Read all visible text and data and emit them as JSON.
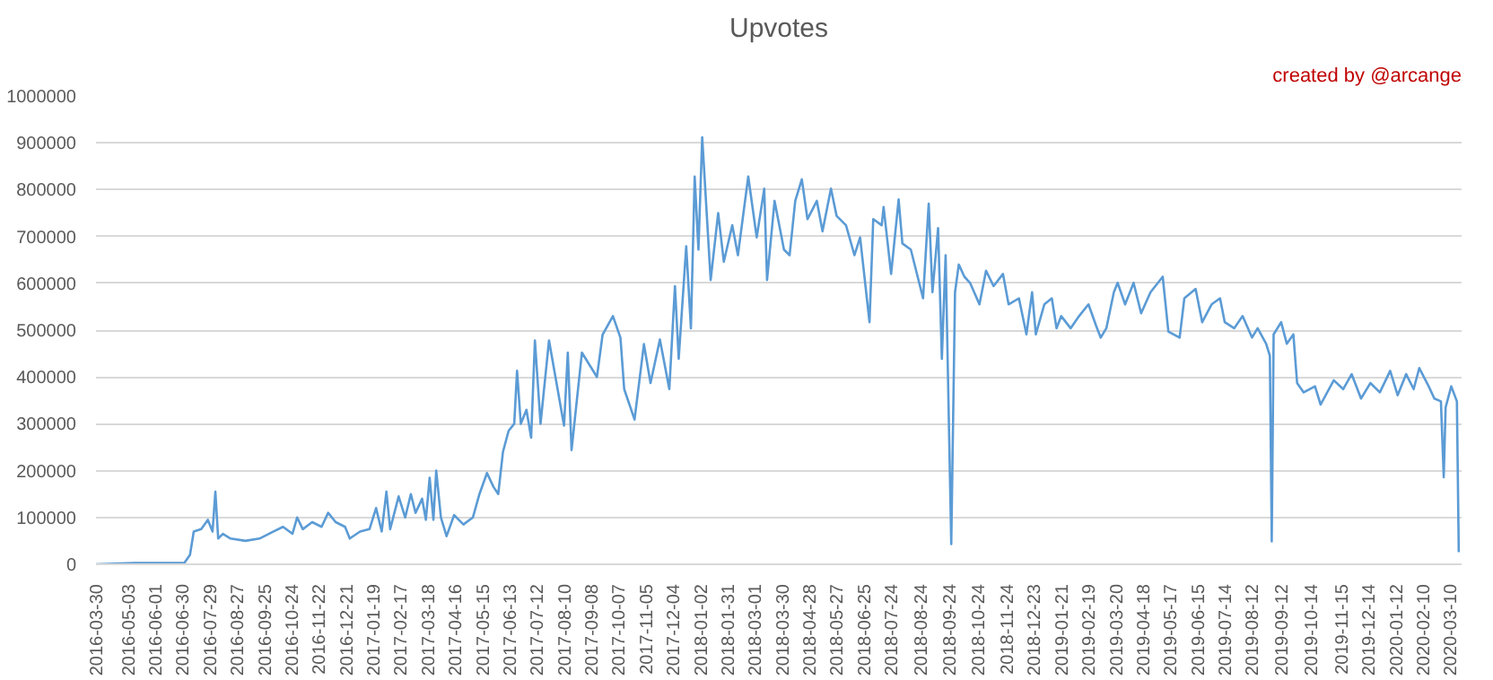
{
  "chart_data": {
    "type": "line",
    "title": "Upvotes",
    "annotations": [
      "created by @arcange"
    ],
    "x": [
      "2016-03-30",
      "2016-05-10",
      "2016-07-02",
      "2016-07-08",
      "2016-07-12",
      "2016-07-20",
      "2016-07-27",
      "2016-08-01",
      "2016-08-04",
      "2016-08-07",
      "2016-08-12",
      "2016-08-20",
      "2016-09-05",
      "2016-09-20",
      "2016-10-05",
      "2016-10-15",
      "2016-10-25",
      "2016-10-30",
      "2016-11-05",
      "2016-11-15",
      "2016-11-25",
      "2016-12-02",
      "2016-12-10",
      "2016-12-20",
      "2016-12-25",
      "2017-01-05",
      "2017-01-15",
      "2017-01-22",
      "2017-01-28",
      "2017-02-02",
      "2017-02-06",
      "2017-02-15",
      "2017-02-22",
      "2017-02-28",
      "2017-03-05",
      "2017-03-12",
      "2017-03-16",
      "2017-03-20",
      "2017-03-24",
      "2017-03-27",
      "2017-04-01",
      "2017-04-07",
      "2017-04-15",
      "2017-04-25",
      "2017-05-05",
      "2017-05-12",
      "2017-05-20",
      "2017-05-27",
      "2017-06-01",
      "2017-06-06",
      "2017-06-12",
      "2017-06-18",
      "2017-06-21",
      "2017-06-25",
      "2017-07-01",
      "2017-07-06",
      "2017-07-10",
      "2017-07-16",
      "2017-07-25",
      "2017-08-10",
      "2017-08-14",
      "2017-08-18",
      "2017-08-29",
      "2017-09-14",
      "2017-09-20",
      "2017-10-01",
      "2017-10-09",
      "2017-10-13",
      "2017-10-24",
      "2017-11-03",
      "2017-11-10",
      "2017-11-20",
      "2017-11-30",
      "2017-12-06",
      "2017-12-10",
      "2017-12-18",
      "2017-12-23",
      "2017-12-27",
      "2017-12-31",
      "2018-01-04",
      "2018-01-08",
      "2018-01-13",
      "2018-01-21",
      "2018-01-27",
      "2018-02-05",
      "2018-02-11",
      "2018-02-22",
      "2018-03-03",
      "2018-03-11",
      "2018-03-14",
      "2018-03-22",
      "2018-04-01",
      "2018-04-07",
      "2018-04-13",
      "2018-04-20",
      "2018-04-26",
      "2018-05-06",
      "2018-05-12",
      "2018-05-21",
      "2018-05-27",
      "2018-06-06",
      "2018-06-15",
      "2018-06-21",
      "2018-07-01",
      "2018-07-05",
      "2018-07-14",
      "2018-07-16",
      "2018-07-24",
      "2018-08-01",
      "2018-08-05",
      "2018-08-14",
      "2018-08-27",
      "2018-09-02",
      "2018-09-06",
      "2018-09-12",
      "2018-09-16",
      "2018-09-20",
      "2018-09-26",
      "2018-09-30",
      "2018-10-04",
      "2018-10-10",
      "2018-10-16",
      "2018-10-26",
      "2018-11-02",
      "2018-11-10",
      "2018-11-20",
      "2018-11-26",
      "2018-12-07",
      "2018-12-15",
      "2018-12-21",
      "2018-12-25",
      "2019-01-03",
      "2019-01-11",
      "2019-01-16",
      "2019-01-21",
      "2019-01-31",
      "2019-02-09",
      "2019-02-19",
      "2019-02-27",
      "2019-03-04",
      "2019-03-10",
      "2019-03-18",
      "2019-03-22",
      "2019-03-30",
      "2019-04-08",
      "2019-04-16",
      "2019-04-26",
      "2019-05-09",
      "2019-05-15",
      "2019-05-27",
      "2019-06-01",
      "2019-06-13",
      "2019-06-20",
      "2019-06-30",
      "2019-07-09",
      "2019-07-14",
      "2019-07-24",
      "2019-08-02",
      "2019-08-12",
      "2019-08-18",
      "2019-08-27",
      "2019-08-31",
      "2019-09-02",
      "2019-09-04",
      "2019-09-12",
      "2019-09-18",
      "2019-09-25",
      "2019-09-29",
      "2019-10-06",
      "2019-10-18",
      "2019-10-24",
      "2019-11-07",
      "2019-11-17",
      "2019-11-26",
      "2019-12-06",
      "2019-12-16",
      "2019-12-26",
      "2020-01-06",
      "2020-01-14",
      "2020-01-23",
      "2020-01-31",
      "2020-02-06",
      "2020-02-16",
      "2020-02-22",
      "2020-02-29",
      "2020-03-03",
      "2020-03-05",
      "2020-03-11",
      "2020-03-17",
      "2020-03-19"
    ],
    "series": [
      {
        "color": "#5b9bd5",
        "values": [
          0,
          3000,
          3000,
          20000,
          70000,
          75000,
          95000,
          70000,
          155000,
          55000,
          65000,
          55000,
          50000,
          55000,
          70000,
          80000,
          65000,
          100000,
          75000,
          90000,
          80000,
          110000,
          90000,
          80000,
          55000,
          70000,
          75000,
          120000,
          70000,
          155000,
          75000,
          145000,
          100000,
          150000,
          110000,
          140000,
          95000,
          185000,
          95000,
          200000,
          100000,
          60000,
          105000,
          85000,
          100000,
          150000,
          195000,
          165000,
          150000,
          240000,
          285000,
          300000,
          413000,
          300000,
          330000,
          270000,
          478000,
          300000,
          478000,
          296000,
          452000,
          244000,
          452000,
          400000,
          490000,
          530000,
          484000,
          374000,
          309000,
          470000,
          387000,
          480000,
          374000,
          594000,
          439000,
          679000,
          504000,
          828000,
          672000,
          912000,
          776000,
          607000,
          750000,
          646000,
          724000,
          660000,
          828000,
          698000,
          802000,
          607000,
          776000,
          672000,
          660000,
          776000,
          822000,
          737000,
          776000,
          711000,
          802000,
          744000,
          724000,
          660000,
          698000,
          517000,
          737000,
          724000,
          763000,
          620000,
          779000,
          685000,
          672000,
          568000,
          770000,
          581000,
          718000,
          439000,
          660000,
          43000,
          581000,
          640000,
          614000,
          601000,
          555000,
          627000,
          594000,
          620000,
          555000,
          568000,
          491000,
          581000,
          491000,
          555000,
          568000,
          504000,
          530000,
          504000,
          530000,
          555000,
          510000,
          484000,
          504000,
          581000,
          601000,
          555000,
          601000,
          536000,
          581000,
          614000,
          497000,
          484000,
          568000,
          588000,
          517000,
          555000,
          568000,
          517000,
          504000,
          530000,
          484000,
          504000,
          471000,
          445000,
          49000,
          491000,
          517000,
          471000,
          491000,
          387000,
          367000,
          380000,
          341000,
          393000,
          374000,
          406000,
          354000,
          387000,
          367000,
          413000,
          361000,
          406000,
          374000,
          419000,
          380000,
          354000,
          348000,
          186000,
          335000,
          380000,
          348000,
          26000
        ]
      }
    ],
    "xlim": [
      "2016-03-30",
      "2020-03-22"
    ],
    "xticks": [
      "2016-03-30",
      "2016-05-03",
      "2016-06-01",
      "2016-06-30",
      "2016-07-29",
      "2016-08-27",
      "2016-09-25",
      "2016-10-24",
      "2016-11-22",
      "2016-12-21",
      "2017-01-19",
      "2017-02-17",
      "2017-03-18",
      "2017-04-16",
      "2017-05-15",
      "2017-06-13",
      "2017-07-12",
      "2017-08-10",
      "2017-09-08",
      "2017-10-07",
      "2017-11-05",
      "2017-12-04",
      "2018-01-02",
      "2018-01-31",
      "2018-03-01",
      "2018-03-30",
      "2018-04-28",
      "2018-05-27",
      "2018-06-25",
      "2018-07-24",
      "2018-08-24",
      "2018-09-24",
      "2018-10-24",
      "2018-11-24",
      "2018-12-23",
      "2019-01-21",
      "2019-02-19",
      "2019-03-20",
      "2019-04-18",
      "2019-05-17",
      "2019-06-15",
      "2019-07-14",
      "2019-08-12",
      "2019-09-12",
      "2019-10-14",
      "2019-11-15",
      "2019-12-14",
      "2020-01-12",
      "2020-02-10",
      "2020-03-10"
    ],
    "ylim": [
      0,
      1000000
    ],
    "yticks": [
      0,
      100000,
      200000,
      300000,
      400000,
      500000,
      600000,
      700000,
      800000,
      900000,
      1000000
    ],
    "grid": "y",
    "marker": "none",
    "line_style": "solid"
  }
}
